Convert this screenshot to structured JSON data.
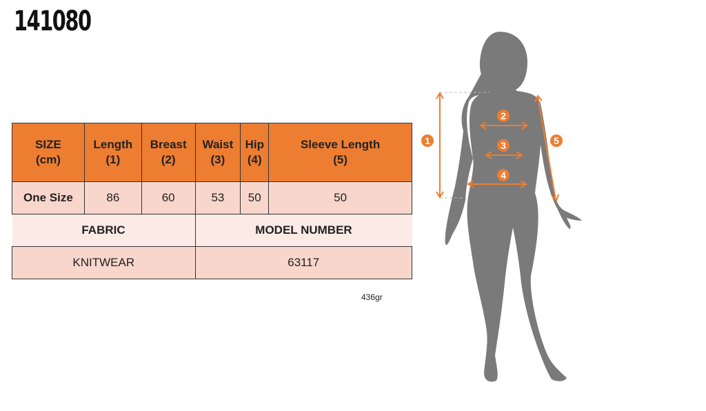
{
  "product_code": "141080",
  "table": {
    "headers": [
      [
        "SIZE",
        "(cm)"
      ],
      [
        "Length",
        "(1)"
      ],
      [
        "Breast",
        "(2)"
      ],
      [
        "Waist",
        "(3)"
      ],
      [
        "Hip",
        "(4)"
      ],
      [
        "Sleeve Length",
        "(5)"
      ]
    ],
    "row": [
      "One Size",
      "86",
      "60",
      "53",
      "50",
      "50"
    ],
    "fabric_label": "FABRIC",
    "model_label": "MODEL NUMBER",
    "fabric_value": "KNITWEAR",
    "model_value": "63117"
  },
  "weight": "436gr",
  "figure": {
    "markers": [
      "1",
      "2",
      "3",
      "4",
      "5"
    ],
    "silhouette_color": "#7a7a7a",
    "accent_color": "#ed7d31"
  }
}
